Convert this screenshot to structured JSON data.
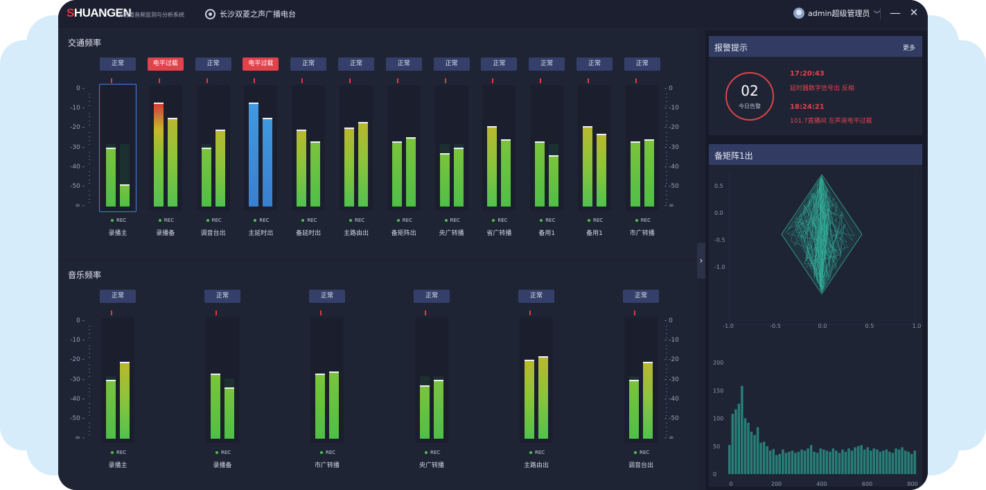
{
  "app": {
    "logo_text": "SHUANGEN",
    "subtitle": "多通道音频监测与分析系统",
    "station": "长沙双菱之声广播电台",
    "user": "admin超级管理员"
  },
  "traffic": {
    "title": "交通频率",
    "scale_labels": [
      "0",
      "-10",
      "-20",
      "-30",
      "-40",
      "-50",
      "∞"
    ],
    "rec_label": "REC",
    "channels": [
      {
        "label": "录播主",
        "status": "正常",
        "alarm": false,
        "levels": [
          -30,
          -49
        ],
        "peaks": [
          -28,
          -28
        ],
        "selected": true
      },
      {
        "label": "录播备",
        "status": "电平过载",
        "alarm": true,
        "levels": [
          -7,
          -15
        ],
        "peaks": [
          -7,
          -15
        ],
        "selected": false
      },
      {
        "label": "调音台出",
        "status": "正常",
        "alarm": false,
        "levels": [
          -30,
          -21
        ],
        "peaks": [
          -28,
          -21
        ],
        "selected": false
      },
      {
        "label": "主延时出",
        "status": "电平过载",
        "alarm": true,
        "levels": [
          -7,
          -15
        ],
        "peaks": [
          -7,
          -15
        ],
        "selected": false,
        "blue": true
      },
      {
        "label": "备延时出",
        "status": "正常",
        "alarm": false,
        "levels": [
          -21,
          -27
        ],
        "peaks": [
          -21,
          -27
        ],
        "selected": false
      },
      {
        "label": "主路由出",
        "status": "正常",
        "alarm": false,
        "levels": [
          -20,
          -17
        ],
        "peaks": [
          -20,
          -17
        ],
        "selected": false
      },
      {
        "label": "备矩阵出",
        "status": "正常",
        "alarm": false,
        "levels": [
          -27,
          -25
        ],
        "peaks": [
          -27,
          -25
        ],
        "selected": false
      },
      {
        "label": "央广转播",
        "status": "正常",
        "alarm": false,
        "levels": [
          -33,
          -30
        ],
        "peaks": [
          -28,
          -28
        ],
        "selected": false
      },
      {
        "label": "省广转播",
        "status": "正常",
        "alarm": false,
        "levels": [
          -19,
          -26
        ],
        "peaks": [
          -19,
          -26
        ],
        "selected": false
      },
      {
        "label": "备用1",
        "status": "正常",
        "alarm": false,
        "levels": [
          -27,
          -34
        ],
        "peaks": [
          -27,
          -28
        ],
        "selected": false
      },
      {
        "label": "备用1",
        "status": "正常",
        "alarm": false,
        "levels": [
          -19,
          -23
        ],
        "peaks": [
          -19,
          -23
        ],
        "selected": false
      },
      {
        "label": "市广转播",
        "status": "正常",
        "alarm": false,
        "levels": [
          -27,
          -26
        ],
        "peaks": [
          -27,
          -26
        ],
        "selected": false
      }
    ]
  },
  "music": {
    "title": "音乐频率",
    "scale_labels": [
      "0",
      "-10",
      "-20",
      "-30",
      "-40",
      "-50",
      "∞"
    ],
    "rec_label": "REC",
    "channels": [
      {
        "label": "录播主",
        "status": "正常",
        "alarm": false,
        "levels": [
          -30,
          -21
        ],
        "peaks": [
          -28,
          -21
        ]
      },
      {
        "label": "录播备",
        "status": "正常",
        "alarm": false,
        "levels": [
          -27,
          -34
        ],
        "peaks": [
          -27,
          -29
        ]
      },
      {
        "label": "市广转播",
        "status": "正常",
        "alarm": false,
        "levels": [
          -27,
          -26
        ],
        "peaks": [
          -27,
          -26
        ]
      },
      {
        "label": "央广转播",
        "status": "正常",
        "alarm": false,
        "levels": [
          -33,
          -30
        ],
        "peaks": [
          -28,
          -28
        ]
      },
      {
        "label": "主路由出",
        "status": "正常",
        "alarm": false,
        "levels": [
          -20,
          -18
        ],
        "peaks": [
          -20,
          -18
        ]
      },
      {
        "label": "调音台出",
        "status": "正常",
        "alarm": false,
        "levels": [
          -30,
          -21
        ],
        "peaks": [
          -28,
          -21
        ]
      }
    ]
  },
  "alarms": {
    "title": "报警提示",
    "more": "更多",
    "count": "02",
    "count_label": "今日告警",
    "items": [
      {
        "time": "17:20:43",
        "message": "延时器数字信号出 反相"
      },
      {
        "time": "18:24:21",
        "message": "101.7直播间 左声道电平过载"
      }
    ]
  },
  "matrix": {
    "title": "备矩阵1出",
    "phase_y_ticks": [
      "1.0",
      "0.5",
      "0.0",
      "-0.5",
      "-1.0"
    ],
    "phase_x_ticks": [
      "-1.0",
      "-0.5",
      "0.0",
      "0.5",
      "1.0"
    ],
    "spectrum_y_ticks": [
      "200",
      "150",
      "100",
      "50",
      "0"
    ],
    "spectrum_x_ticks": [
      "0",
      "200",
      "400",
      "600",
      "800"
    ],
    "spectrum_values": [
      52,
      108,
      116,
      126,
      158,
      100,
      92,
      76,
      70,
      84,
      56,
      58,
      50,
      42,
      45,
      34,
      36,
      44,
      38,
      40,
      42,
      38,
      40,
      44,
      42,
      46,
      52,
      40,
      38,
      46,
      44,
      42,
      40,
      46,
      42,
      38,
      44,
      40,
      46,
      42,
      48,
      50,
      52,
      44,
      48,
      42,
      46,
      44,
      40,
      42,
      44,
      40,
      38,
      46,
      44,
      48,
      42,
      40,
      36,
      42
    ]
  },
  "colors": {
    "accent": "#3f7fd8",
    "alarm": "#e0434a",
    "badge": "#34406a",
    "meter_green": "#52c24f",
    "meter_yellow": "#c9b530",
    "meter_red": "#d43a2f"
  }
}
